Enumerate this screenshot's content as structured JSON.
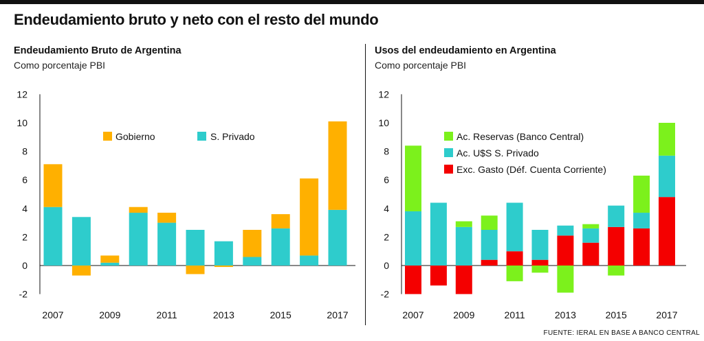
{
  "title": "Endeudamiento bruto y neto con el resto del mundo",
  "source": "FUENTE: IERAL EN BASE A BANCO CENTRAL",
  "colors": {
    "gobierno": "#FFB000",
    "privado": "#2ECCCC",
    "reservas": "#7CF11C",
    "gasto": "#F40000"
  },
  "chart_data": [
    {
      "type": "bar",
      "stacked": true,
      "title": "Endeudamiento Bruto de Argentina",
      "subtitle": "Como porcentaje PBI",
      "xlabel": "",
      "ylabel": "",
      "ylim": [
        -2,
        12
      ],
      "yticks": [
        "12",
        "10",
        "8",
        "6",
        "4",
        "2",
        "0",
        "-2"
      ],
      "ytick_values": [
        12,
        10,
        8,
        6,
        4,
        2,
        0,
        -2
      ],
      "categories": [
        "2007",
        "2008",
        "2009",
        "2010",
        "2011",
        "2012",
        "2013",
        "2014",
        "2015",
        "2016",
        "2017"
      ],
      "tick_labels": [
        "2007",
        "2009",
        "2011",
        "2013",
        "2015",
        "2017"
      ],
      "legend": "top-left",
      "series": [
        {
          "name": "S. Privado",
          "color": "#2ECCCC",
          "values": [
            4.1,
            3.4,
            0.2,
            3.7,
            3.0,
            2.5,
            1.7,
            0.6,
            2.6,
            0.7,
            3.9
          ]
        },
        {
          "name": "Gobierno",
          "color": "#FFB000",
          "values": [
            3.0,
            -0.7,
            0.5,
            0.4,
            0.7,
            -0.6,
            -0.1,
            1.9,
            1.0,
            5.4,
            6.2
          ]
        }
      ]
    },
    {
      "type": "bar",
      "stacked": true,
      "title": "Usos del endeudamiento en Argentina",
      "subtitle": "Como porcentaje PBI",
      "xlabel": "",
      "ylabel": "",
      "ylim": [
        -2,
        12
      ],
      "yticks": [
        "12",
        "10",
        "8",
        "6",
        "4",
        "2",
        "0",
        "-2"
      ],
      "ytick_values": [
        12,
        10,
        8,
        6,
        4,
        2,
        0,
        -2
      ],
      "categories": [
        "2007",
        "2008",
        "2009",
        "2010",
        "2011",
        "2012",
        "2013",
        "2014",
        "2015",
        "2016",
        "2017"
      ],
      "tick_labels": [
        "2007",
        "2009",
        "2011",
        "2013",
        "2015",
        "2017"
      ],
      "legend": "top-left",
      "series": [
        {
          "name": "Exc. Gasto (Déf. Cuenta Corriente)",
          "color": "#F40000",
          "values": [
            -2.0,
            -1.4,
            -2.0,
            0.4,
            1.0,
            0.4,
            2.1,
            1.6,
            2.7,
            2.6,
            4.8
          ]
        },
        {
          "name": "Ac. U$S S. Privado",
          "color": "#2ECCCC",
          "values": [
            3.8,
            4.4,
            2.7,
            2.1,
            3.4,
            2.1,
            0.7,
            1.0,
            1.5,
            1.1,
            2.9
          ]
        },
        {
          "name": "Ac. Reservas (Banco Central)",
          "color": "#7CF11C",
          "values": [
            4.6,
            0,
            0.4,
            1.0,
            -1.1,
            -0.5,
            -1.9,
            0.3,
            -0.7,
            2.6,
            2.3
          ]
        }
      ],
      "legend_order": [
        "Ac. Reservas (Banco Central)",
        "Ac. U$S S. Privado",
        "Exc. Gasto (Déf. Cuenta Corriente)"
      ]
    }
  ]
}
